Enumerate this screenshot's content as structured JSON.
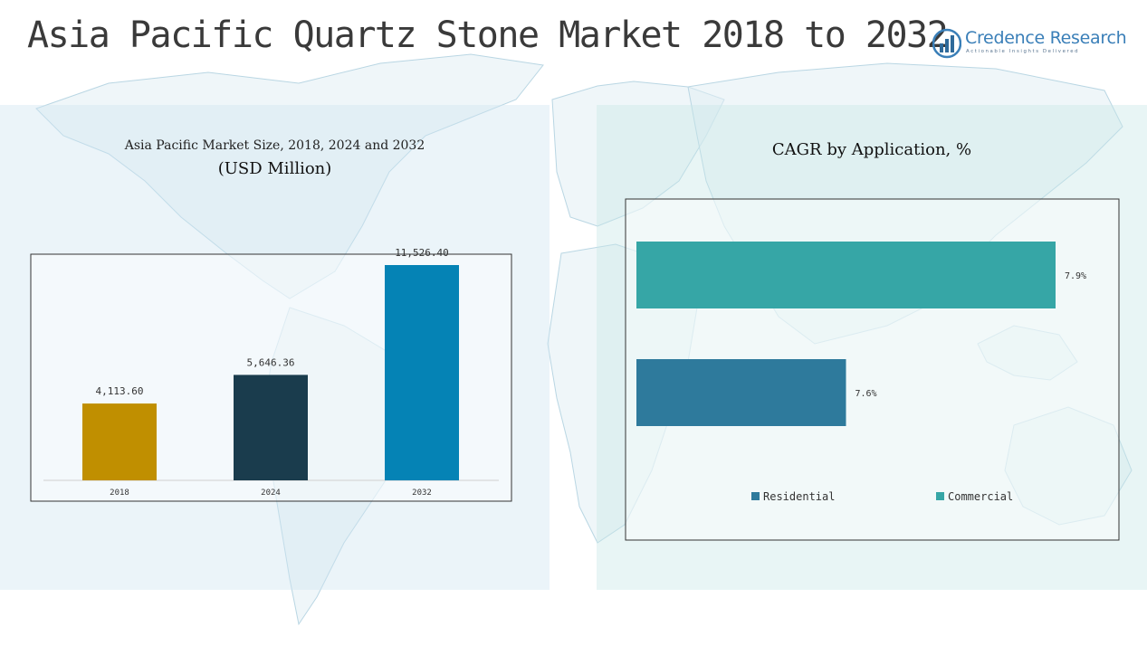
{
  "header": {
    "title": "Asia Pacific Quartz Stone Market 2018 to 2032",
    "logo_name": "Credence Research",
    "logo_tagline": "Actionable Insights Delivered"
  },
  "chart_data": [
    {
      "type": "bar",
      "title": "Asia Pacific Market Size, 2018, 2024 and 2032",
      "subtitle": "(USD Million)",
      "categories": [
        "2018",
        "2024",
        "2032"
      ],
      "values": [
        4113.6,
        5646.36,
        11526.4
      ],
      "value_labels": [
        "4,113.60",
        "5,646.36",
        "11,526.40"
      ],
      "colors": [
        "#c08f00",
        "#1a3c4d",
        "#0583b5"
      ],
      "ylim": [
        0,
        12000
      ],
      "xlabel": "",
      "ylabel": ""
    },
    {
      "type": "bar",
      "orientation": "horizontal",
      "title": "CAGR by Application, %",
      "categories": [
        "Commercial",
        "Residential"
      ],
      "values": [
        7.9,
        7.6
      ],
      "value_labels": [
        "7.9%",
        "7.6%"
      ],
      "colors": [
        "#36a6a6",
        "#2e7a9c"
      ],
      "legend": [
        {
          "label": "Residential",
          "color": "#2e7a9c"
        },
        {
          "label": "Commercial",
          "color": "#36a6a6"
        }
      ],
      "legend_position": "bottom"
    }
  ]
}
